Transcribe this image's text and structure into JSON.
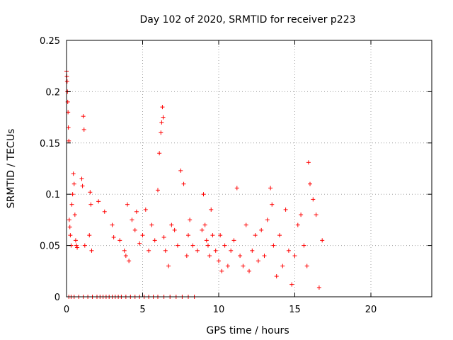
{
  "chart_data": {
    "type": "scatter",
    "title": "Day 102 of 2020, SRMTID for receiver p223",
    "xlabel": "GPS time / hours",
    "ylabel": "SRMTID / TECUs",
    "xlim": [
      0,
      24
    ],
    "ylim": [
      0,
      0.25
    ],
    "xticks": [
      0,
      5,
      10,
      15,
      20
    ],
    "yticks": [
      0,
      0.05,
      0.1,
      0.15,
      0.2,
      0.25
    ],
    "xtick_labels": [
      "0",
      "5",
      "10",
      "15",
      "20"
    ],
    "ytick_labels": [
      "0",
      "0.05",
      "0.1",
      "0.15",
      "0.2",
      "0.25"
    ],
    "grid": true,
    "marker": "+",
    "color": "#ff0000",
    "series": [
      {
        "name": "SRMTID",
        "x": [
          0.0,
          0.02,
          0.04,
          0.06,
          0.08,
          0.1,
          0.12,
          0.15,
          0.18,
          0.22,
          0.25,
          0.3,
          0.35,
          0.4,
          0.45,
          0.5,
          0.55,
          0.6,
          0.65,
          0.7,
          1.0,
          1.05,
          1.1,
          1.15,
          1.2,
          1.5,
          1.55,
          1.6,
          1.65,
          2.1,
          2.5,
          3.0,
          3.1,
          3.5,
          3.8,
          3.9,
          4.0,
          4.1,
          4.3,
          4.5,
          4.6,
          4.8,
          5.0,
          5.2,
          5.4,
          5.6,
          5.8,
          6.0,
          6.1,
          6.2,
          6.25,
          6.3,
          6.35,
          6.4,
          6.5,
          6.7,
          6.9,
          7.1,
          7.3,
          7.5,
          7.7,
          7.9,
          8.0,
          8.1,
          8.3,
          8.6,
          8.9,
          9.0,
          9.1,
          9.2,
          9.3,
          9.4,
          9.5,
          9.6,
          9.8,
          10.0,
          10.1,
          10.2,
          10.4,
          10.6,
          10.8,
          11.0,
          11.2,
          11.4,
          11.6,
          11.8,
          12.0,
          12.2,
          12.4,
          12.6,
          12.8,
          13.0,
          13.2,
          13.4,
          13.5,
          13.6,
          13.8,
          14.0,
          14.2,
          14.4,
          14.6,
          14.8,
          15.0,
          15.2,
          15.4,
          15.6,
          15.8,
          15.9,
          16.0,
          16.2,
          16.4,
          16.6,
          16.8,
          0.15,
          0.3,
          0.5,
          0.8,
          1.1,
          1.4,
          1.7,
          2.0,
          2.2,
          2.4,
          2.6,
          2.8,
          3.0,
          3.2,
          3.4,
          3.6,
          3.9,
          4.2,
          4.5,
          4.8,
          5.1,
          5.4,
          5.7,
          6.0,
          6.4,
          6.8,
          7.2,
          7.6,
          8.0,
          8.4
        ],
        "y": [
          0.22,
          0.215,
          0.21,
          0.2,
          0.19,
          0.18,
          0.165,
          0.152,
          0.075,
          0.068,
          0.06,
          0.05,
          0.09,
          0.1,
          0.12,
          0.11,
          0.08,
          0.055,
          0.05,
          0.048,
          0.115,
          0.108,
          0.176,
          0.163,
          0.05,
          0.06,
          0.102,
          0.09,
          0.045,
          0.093,
          0.083,
          0.07,
          0.058,
          0.055,
          0.045,
          0.04,
          0.09,
          0.035,
          0.075,
          0.065,
          0.083,
          0.052,
          0.06,
          0.085,
          0.045,
          0.07,
          0.055,
          0.104,
          0.14,
          0.16,
          0.17,
          0.185,
          0.175,
          0.058,
          0.045,
          0.03,
          0.07,
          0.065,
          0.05,
          0.123,
          0.11,
          0.04,
          0.06,
          0.075,
          0.05,
          0.045,
          0.065,
          0.1,
          0.07,
          0.055,
          0.05,
          0.04,
          0.085,
          0.06,
          0.045,
          0.035,
          0.06,
          0.025,
          0.05,
          0.03,
          0.045,
          0.055,
          0.106,
          0.04,
          0.03,
          0.07,
          0.025,
          0.045,
          0.06,
          0.035,
          0.065,
          0.04,
          0.075,
          0.106,
          0.09,
          0.05,
          0.02,
          0.06,
          0.03,
          0.085,
          0.045,
          0.012,
          0.04,
          0.07,
          0.08,
          0.05,
          0.03,
          0.131,
          0.11,
          0.095,
          0.08,
          0.009,
          0.055,
          0.0,
          0.0,
          0.0,
          0.0,
          0.0,
          0.0,
          0.0,
          0.0,
          0.0,
          0.0,
          0.0,
          0.0,
          0.0,
          0.0,
          0.0,
          0.0,
          0.0,
          0.0,
          0.0,
          0.0,
          0.0,
          0.0,
          0.0,
          0.0,
          0.0,
          0.0,
          0.0,
          0.0,
          0.0,
          0.0
        ]
      }
    ]
  }
}
